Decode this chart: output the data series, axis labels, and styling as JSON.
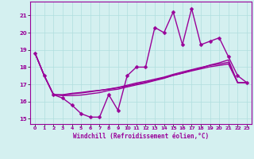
{
  "title": "",
  "xlabel": "Windchill (Refroidissement éolien,°C)",
  "ylabel": "",
  "background_color": "#d4f0f0",
  "line_color": "#990099",
  "grid_color": "#b0dede",
  "xlim": [
    -0.5,
    23.5
  ],
  "ylim": [
    14.7,
    21.8
  ],
  "yticks": [
    15,
    16,
    17,
    18,
    19,
    20,
    21
  ],
  "xticks": [
    0,
    1,
    2,
    3,
    4,
    5,
    6,
    7,
    8,
    9,
    10,
    11,
    12,
    13,
    14,
    15,
    16,
    17,
    18,
    19,
    20,
    21,
    22,
    23
  ],
  "series_main": [
    18.8,
    17.5,
    16.4,
    16.2,
    15.8,
    15.3,
    15.1,
    15.1,
    16.4,
    15.5,
    17.5,
    18.0,
    18.0,
    20.3,
    20.0,
    21.2,
    19.3,
    21.4,
    19.3,
    19.5,
    19.7,
    18.6,
    17.5,
    17.1
  ],
  "series_smooth": [
    [
      18.8,
      17.5,
      16.4,
      16.35,
      16.35,
      16.38,
      16.45,
      16.52,
      16.65,
      16.72,
      16.85,
      16.97,
      17.08,
      17.22,
      17.35,
      17.52,
      17.65,
      17.82,
      17.95,
      18.12,
      18.25,
      18.42,
      17.1,
      17.1
    ],
    [
      18.8,
      17.5,
      16.4,
      16.38,
      16.45,
      16.5,
      16.57,
      16.65,
      16.72,
      16.8,
      16.9,
      17.02,
      17.12,
      17.25,
      17.38,
      17.52,
      17.65,
      17.78,
      17.9,
      18.02,
      18.1,
      18.18,
      17.1,
      17.1
    ],
    [
      18.8,
      17.5,
      16.4,
      16.4,
      16.48,
      16.53,
      16.6,
      16.65,
      16.73,
      16.82,
      16.95,
      17.08,
      17.18,
      17.3,
      17.42,
      17.58,
      17.72,
      17.85,
      17.98,
      18.1,
      18.18,
      18.28,
      17.1,
      17.1
    ]
  ],
  "markersize": 2.5,
  "linewidth": 1.0
}
